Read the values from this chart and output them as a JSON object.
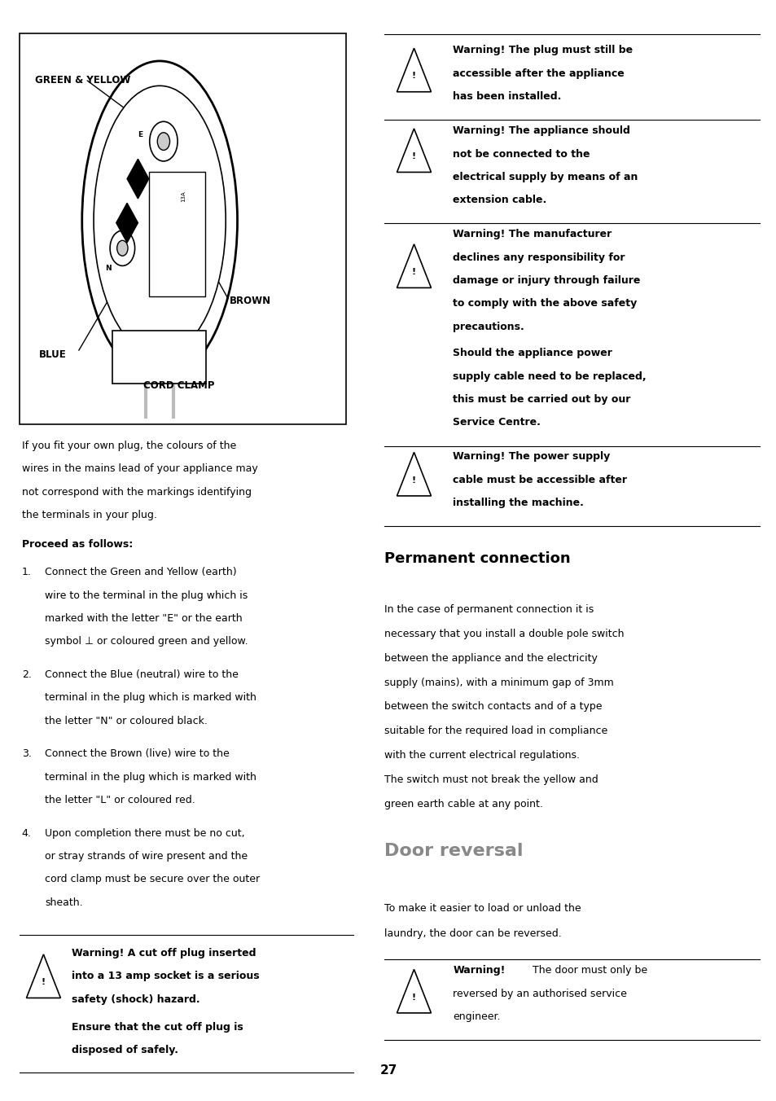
{
  "bg_color": "#ffffff",
  "page_number": "27",
  "intro_lines": [
    "If you fit your own plug, the colours of the",
    "wires in the mains lead of your appliance may",
    "not correspond with the markings identifying",
    "the terminals in your plug."
  ],
  "proceed_header": "Proceed as follows:",
  "steps": [
    [
      "Connect the Green and Yellow (earth)",
      "wire to the terminal in the plug which is",
      "marked with the letter \"E\" or the earth",
      "symbol ⊥ or coloured green and yellow."
    ],
    [
      "Connect the Blue (neutral) wire to the",
      "terminal in the plug which is marked with",
      "the letter \"N\" or coloured black."
    ],
    [
      "Connect the Brown (live) wire to the",
      "terminal in the plug which is marked with",
      "the letter \"L\" or coloured red."
    ],
    [
      "Upon completion there must be no cut,",
      "or stray strands of wire present and the",
      "cord clamp must be secure over the outer",
      "sheath."
    ]
  ],
  "warn_left_bold": [
    "Warning! A cut off plug inserted",
    "into a 13 amp socket is a serious",
    "safety (shock) hazard."
  ],
  "warn_left_extra": [
    "Ensure that the cut off plug is",
    "disposed of safely."
  ],
  "w1_lines": [
    "Warning! The plug must still be",
    "accessible after the appliance",
    "has been installed."
  ],
  "w2_lines": [
    "Warning! The appliance should",
    "not be connected to the",
    "electrical supply by means of an",
    "extension cable."
  ],
  "w3_bold": [
    "Warning! The manufacturer",
    "declines any responsibility for",
    "damage or injury through failure",
    "to comply with the above safety",
    "precautions."
  ],
  "w3_extra": [
    "Should the appliance power",
    "supply cable need to be replaced,",
    "this must be carried out by our",
    "Service Centre."
  ],
  "w4_lines": [
    "Warning! The power supply",
    "cable must be accessible after",
    "installing the machine."
  ],
  "permanent_header": "Permanent connection",
  "pc_lines": [
    "In the case of permanent connection it is",
    "necessary that you install a double pole switch",
    "between the appliance and the electricity",
    "supply (mains), with a minimum gap of 3mm",
    "between the switch contacts and of a type",
    "suitable for the required load in compliance",
    "with the current electrical regulations.",
    "The switch must not break the yellow and",
    "green earth cable at any point."
  ],
  "door_header": "Door reversal",
  "door_lines": [
    "To make it easier to load or unload the",
    "laundry, the door can be reversed."
  ],
  "door_warn_bold": "Warning!",
  "door_warn_normal": " The door must only be",
  "door_warn_lines": [
    "reversed by an authorised service",
    "engineer."
  ]
}
